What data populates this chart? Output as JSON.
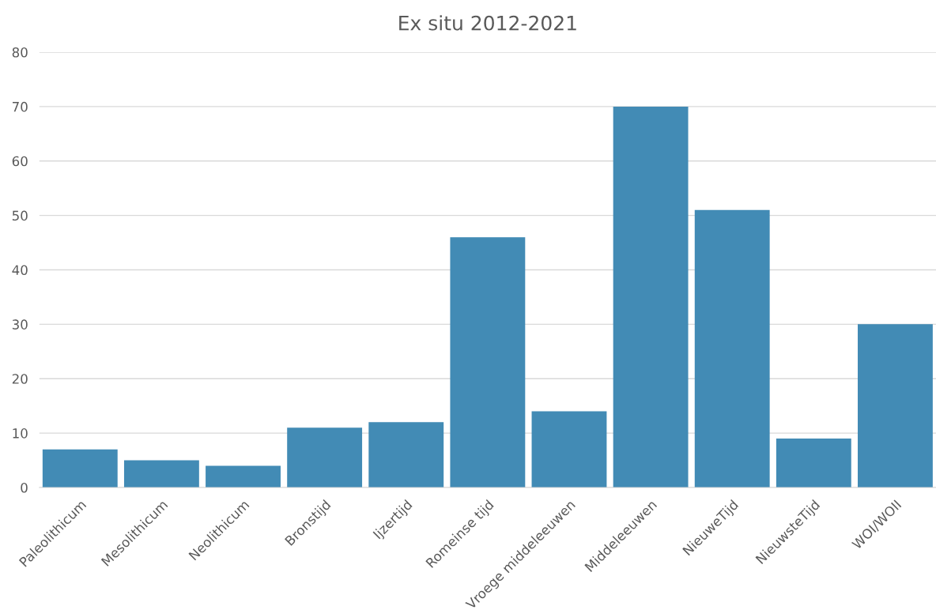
{
  "chart_data": {
    "type": "bar",
    "title": "Ex situ 2012-2021",
    "categories": [
      "Paleolithicum",
      "Mesolithicum",
      "Neolithicum",
      "Bronstijd",
      "Ijzertijd",
      "Romeinse tijd",
      "Vroege middeleeuwen",
      "Middeleeuwen",
      "NieuweTijd",
      "NieuwsteTijd",
      "WOI/WOII"
    ],
    "values": [
      7,
      5,
      4,
      11,
      12,
      46,
      14,
      70,
      51,
      9,
      30
    ],
    "color": "#428bb5",
    "ylim": [
      0,
      80
    ],
    "yticks": [
      0,
      10,
      20,
      30,
      40,
      50,
      60,
      70,
      80
    ],
    "grid": "y"
  }
}
